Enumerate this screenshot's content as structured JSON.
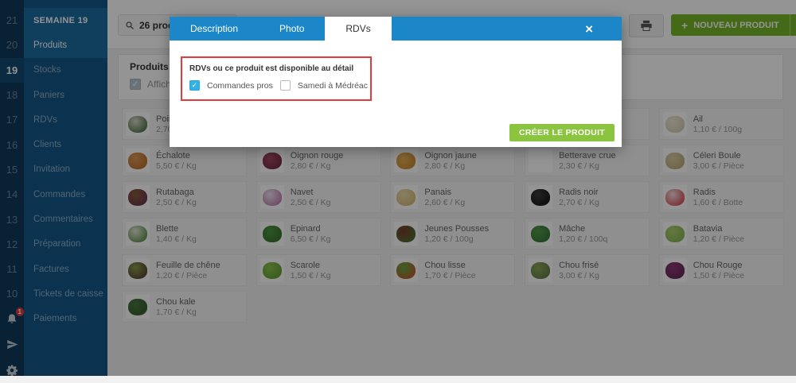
{
  "sidebar": {
    "weeks": [
      "21",
      "20",
      "19",
      "18",
      "17",
      "16",
      "15",
      "14",
      "13",
      "12",
      "11",
      "10"
    ],
    "active_week": "19",
    "header": "SEMAINE 19",
    "items": [
      "Produits",
      "Stocks",
      "Paniers",
      "RDVs",
      "Clients",
      "Invitation",
      "Commandes",
      "Commentaires",
      "Préparation",
      "Factures",
      "Tickets de caisse",
      "Paiements"
    ],
    "active_item": "Produits",
    "notification_count": "1"
  },
  "topbar": {
    "search_value": "26 produits",
    "new_product_label": "NOUVEAU PRODUIT",
    "plus_symbol": "+"
  },
  "filter_panel": {
    "title": "Produits non",
    "checkbox_label": "Affiche",
    "checkbox_checked": true
  },
  "modal": {
    "tabs": [
      {
        "label": "Description",
        "active": false
      },
      {
        "label": "Photo",
        "active": false
      },
      {
        "label": "RDVs",
        "active": true
      }
    ],
    "close_symbol": "×",
    "section_title": "RDVs ou ce produit est disponible au détail",
    "checkboxes": [
      {
        "label": "Commandes pros",
        "checked": true
      },
      {
        "label": "Samedi à Médréac",
        "checked": false
      }
    ],
    "submit_label": "CRÉER LE PRODUIT"
  },
  "colors": {
    "accent_blue": "#1b87c9",
    "accent_green": "#76b728",
    "modal_green": "#8bc53f",
    "alert_red": "#e23b3b",
    "checkbox_blue": "#33b1e6",
    "sidebar_dark": "#0e3a5c",
    "sidebar_blue": "#14598a"
  },
  "products": [
    {
      "name": "Poireau",
      "price": "2,70 €",
      "c1": "#2e5d2a",
      "c2": "#d9d9c8"
    },
    {
      "hidden": true
    },
    {
      "hidden": true
    },
    {
      "hidden": true
    },
    {
      "name": "Ail",
      "price": "1,10 € / 100g",
      "c1": "#cfc5a8",
      "c2": "#efe9d6"
    },
    {
      "name": "Échalote",
      "price": "5,50 € / Kg",
      "c1": "#b5651d",
      "c2": "#d89a5a"
    },
    {
      "name": "Oignon rouge",
      "price": "2,80 € / Kg",
      "c1": "#6e2338",
      "c2": "#a04a63"
    },
    {
      "name": "Oignon jaune",
      "price": "2,80 € / Kg",
      "c1": "#c08028",
      "c2": "#e8b45a"
    },
    {
      "name": "Betterave crue",
      "price": "2,30 € / Kg",
      "c1": null,
      "c2": null
    },
    {
      "name": "Céleri Boule",
      "price": "3,00 € / Pièce",
      "c1": "#b3a273",
      "c2": "#d9cda5"
    },
    {
      "name": "Rutabaga",
      "price": "2,50 € / Kg",
      "c1": "#5e3350",
      "c2": "#8a5a3b"
    },
    {
      "name": "Navet",
      "price": "2,50 € / Kg",
      "c1": "#b06aa0",
      "c2": "#eee2ee"
    },
    {
      "name": "Panais",
      "price": "2,60 € / Kg",
      "c1": "#cdb26a",
      "c2": "#ecdcae"
    },
    {
      "name": "Radis noir",
      "price": "2,70 € / Kg",
      "c1": "#101010",
      "c2": "#3a3a3a"
    },
    {
      "name": "Radis",
      "price": "1,60 € / Botte",
      "c1": "#d42b3a",
      "c2": "#f2dfdf"
    },
    {
      "name": "Blette",
      "price": "1,40 € / Kg",
      "c1": "#3f7d2f",
      "c2": "#e4e8d4"
    },
    {
      "name": "Epinard",
      "price": "6,50 € / Kg",
      "c1": "#2f6b2a",
      "c2": "#4f9440"
    },
    {
      "name": "Jeunes Pousses",
      "price": "1,20 € / 100g",
      "c1": "#3f7d2f",
      "c2": "#7a3b2e"
    },
    {
      "name": "Mâche",
      "price": "1,20 € / 100q",
      "c1": "#2f6e35",
      "c2": "#55984a"
    },
    {
      "name": "Batavia",
      "price": "1,20 € / Pièce",
      "c1": "#7ab048",
      "c2": "#aecf72"
    },
    {
      "name": "Feuille de chêne",
      "price": "1,20 € / Pièce",
      "c1": "#4a2f28",
      "c2": "#8a9b4e"
    },
    {
      "name": "Scarole",
      "price": "1,50 € / Kg",
      "c1": "#5e9433",
      "c2": "#8bc34a"
    },
    {
      "name": "Chou lisse",
      "price": "1,70 € / Pièce",
      "c1": "#cc4a2e",
      "c2": "#66a83e"
    },
    {
      "name": "Chou frisé",
      "price": "3,00 € / Kg",
      "c1": "#55753a",
      "c2": "#8aa45e"
    },
    {
      "name": "Chou Rouge",
      "price": "1,50 € / Pièce",
      "c1": "#5e2350",
      "c2": "#8a3b72"
    },
    {
      "name": "Chou kale",
      "price": "1,70 € / Kg",
      "c1": "#2f5d2a",
      "c2": "#4d7440"
    }
  ]
}
